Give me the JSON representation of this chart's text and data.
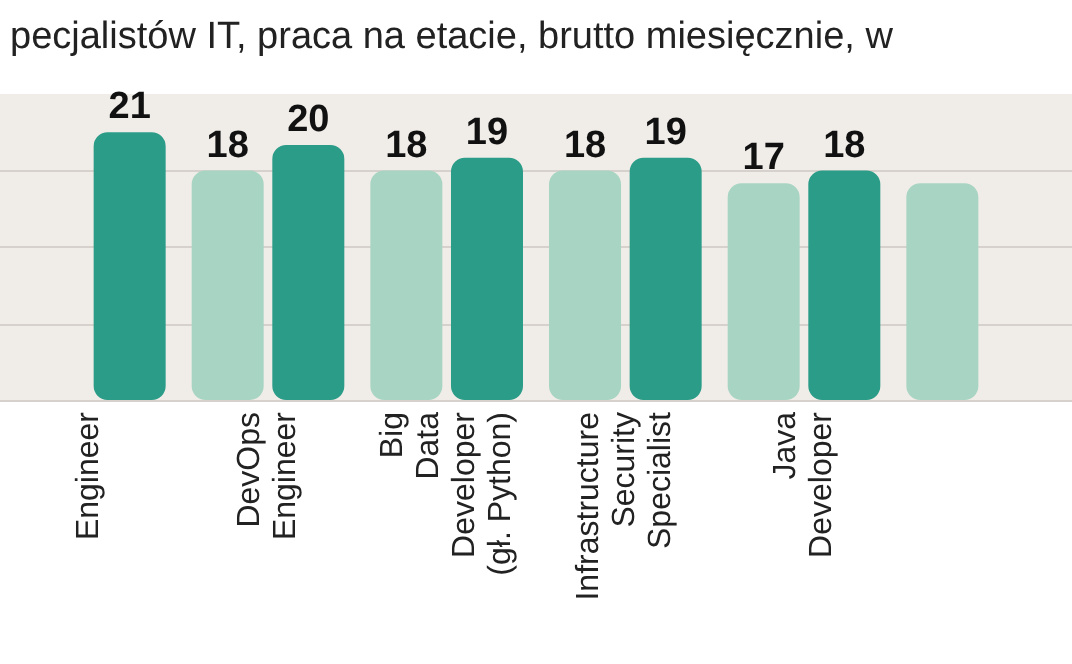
{
  "chart_data": {
    "type": "bar",
    "title": "pecjalistów IT, praca na etacie, brutto miesięcznie, w",
    "categories": [
      "Engineer",
      "DevOps\nEngineer",
      "Big\nData\nDeveloper\n(gł. Python)",
      "Infrastructure\nSecurity\nSpecialist",
      "Java\nDeveloper",
      null
    ],
    "series": [
      {
        "color": "#a8d5c3",
        "values": [
          null,
          18,
          18,
          18,
          17,
          17
        ],
        "value_labels": [
          null,
          "18",
          "18",
          "18",
          "17",
          null
        ]
      },
      {
        "color": "#2a9c88",
        "values": [
          21,
          20,
          19,
          19,
          18,
          null
        ],
        "value_labels": [
          "21",
          "20",
          "19",
          "19",
          "18",
          null
        ]
      }
    ],
    "ylim": [
      0,
      24
    ],
    "yticks": [
      {
        "value": 0,
        "label": null
      },
      {
        "value": 6,
        "label": null
      },
      {
        "value": 12,
        "label": null
      },
      {
        "value": 18,
        "label": null
      }
    ],
    "grid": "y",
    "tick_labels": "x"
  }
}
